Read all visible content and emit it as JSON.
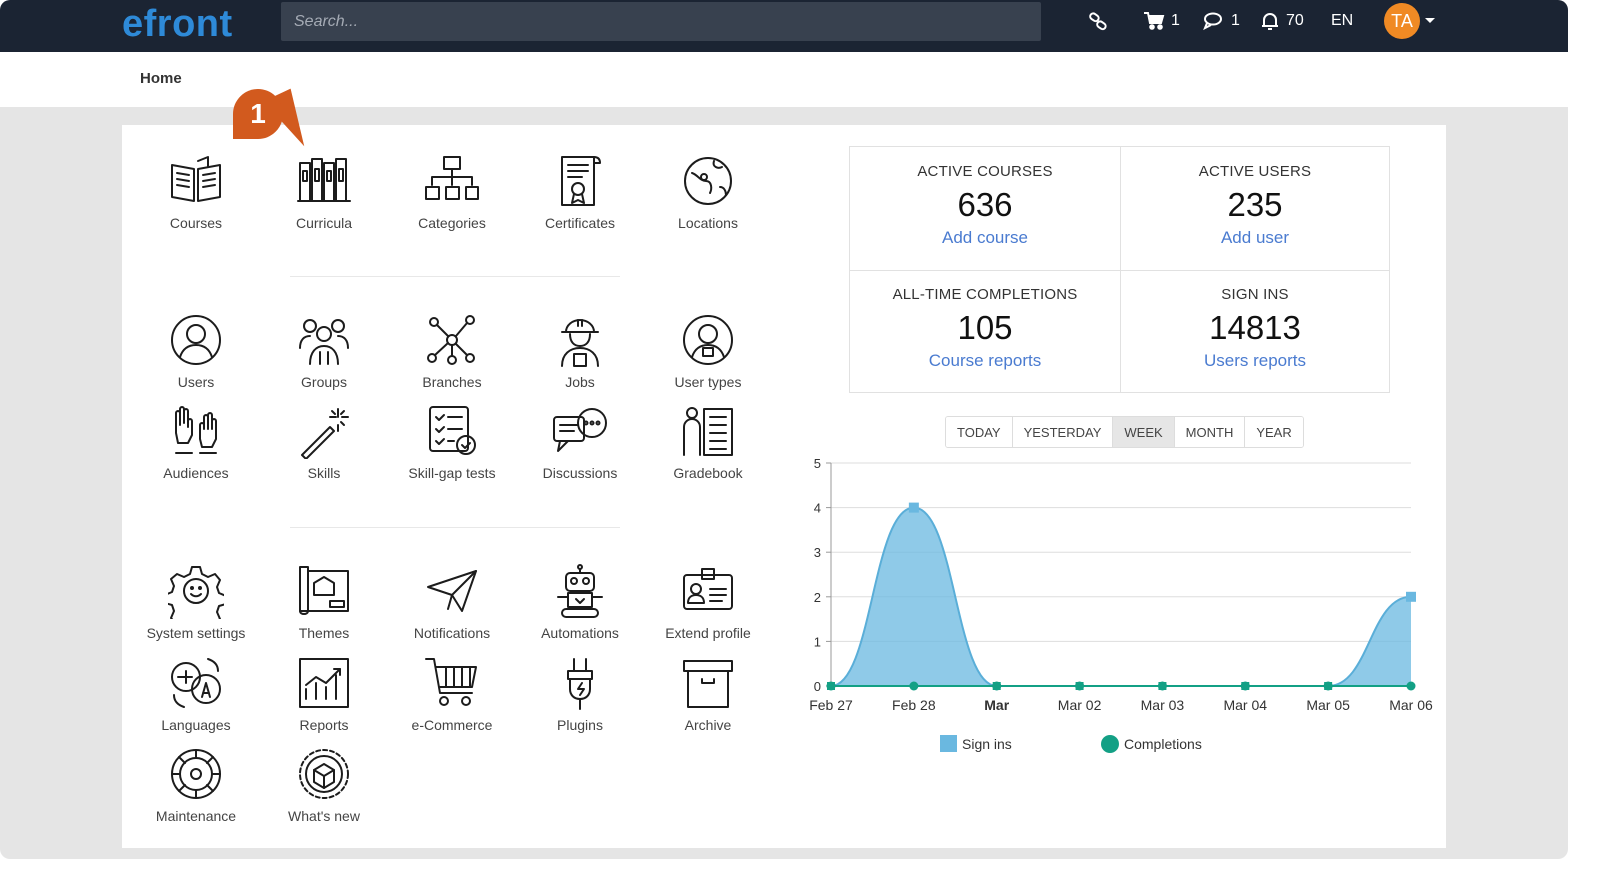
{
  "header": {
    "logo": "efront",
    "search_placeholder": "Search...",
    "cart_count": "1",
    "messages_count": "1",
    "notifications_count": "70",
    "language": "EN",
    "avatar_initials": "TA"
  },
  "breadcrumb": {
    "home": "Home"
  },
  "badge": "1",
  "sections": {
    "row1": [
      "Courses",
      "Curricula",
      "Categories",
      "Certificates",
      "Locations"
    ],
    "row2": [
      "Users",
      "Groups",
      "Branches",
      "Jobs",
      "User types"
    ],
    "row3": [
      "Audiences",
      "Skills",
      "Skill-gap tests",
      "Discussions",
      "Gradebook"
    ],
    "row4": [
      "System settings",
      "Themes",
      "Notifications",
      "Automations",
      "Extend profile"
    ],
    "row5": [
      "Languages",
      "Reports",
      "e-Commerce",
      "Plugins",
      "Archive"
    ],
    "row6": [
      "Maintenance",
      "What's new"
    ]
  },
  "stats": {
    "active_courses": {
      "title": "ACTIVE COURSES",
      "value": "636",
      "link": "Add course"
    },
    "active_users": {
      "title": "ACTIVE USERS",
      "value": "235",
      "link": "Add user"
    },
    "completions": {
      "title": "ALL-TIME COMPLETIONS",
      "value": "105",
      "link": "Course reports"
    },
    "sign_ins": {
      "title": "SIGN INS",
      "value": "14813",
      "link": "Users reports"
    }
  },
  "periods": [
    "TODAY",
    "YESTERDAY",
    "WEEK",
    "MONTH",
    "YEAR"
  ],
  "active_period": "WEEK",
  "colors": {
    "topbar": "#1b2433",
    "accent": "#2e8ad8",
    "orange": "#f08a24",
    "sign_ins": "#6ab8e0",
    "completions": "#13a085"
  },
  "chart_data": {
    "type": "area",
    "categories": [
      "Feb 27",
      "Feb 28",
      "Mar",
      "Mar 02",
      "Mar 03",
      "Mar 04",
      "Mar 05",
      "Mar 06"
    ],
    "bold_categories": [
      "Mar"
    ],
    "ylim": [
      0,
      5
    ],
    "yticks": [
      0,
      1,
      2,
      3,
      4,
      5
    ],
    "grid": true,
    "legend": "bottom",
    "series": [
      {
        "name": "Sign ins",
        "values": [
          0,
          4,
          0,
          0,
          0,
          0,
          0,
          2
        ]
      },
      {
        "name": "Completions",
        "values": [
          0,
          0,
          0,
          0,
          0,
          0,
          0,
          0
        ]
      }
    ]
  }
}
